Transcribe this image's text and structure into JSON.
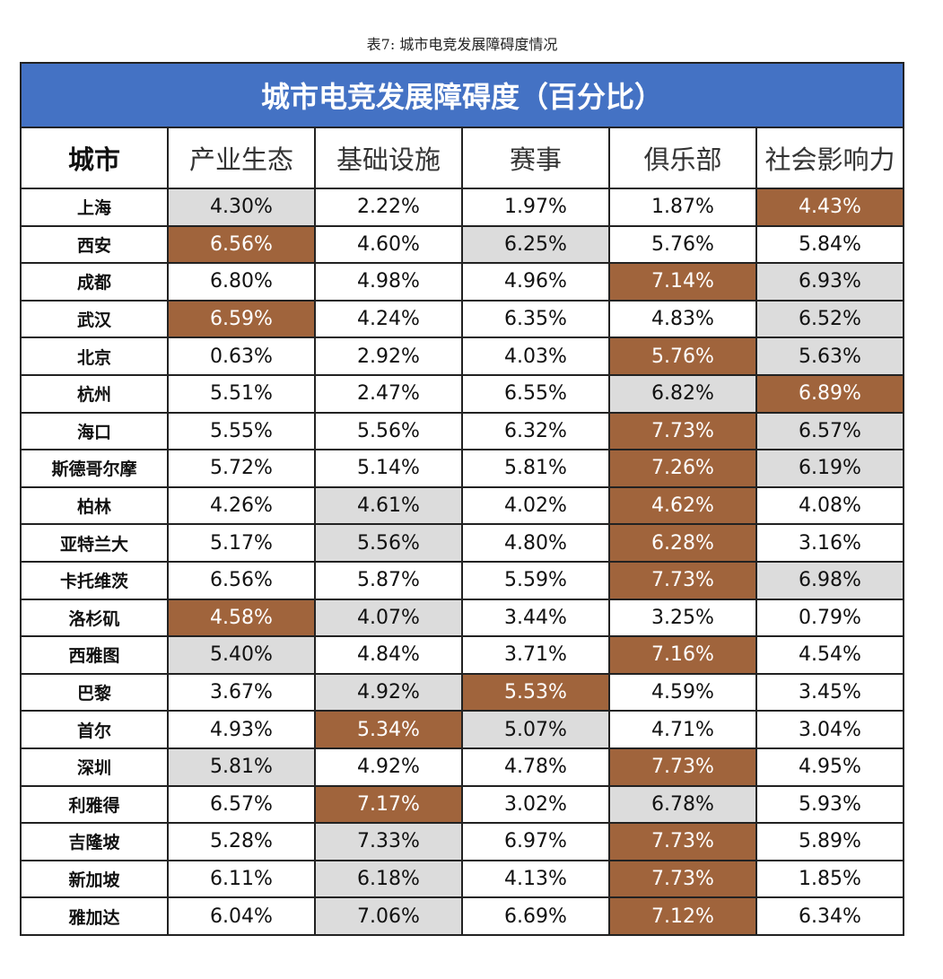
{
  "caption": "表7:  城市电竞发展障碍度情况",
  "table": {
    "title": "城市电竞发展障碍度（百分比）",
    "columns": [
      "城市",
      "产业生态",
      "基础设施",
      "赛事",
      "俱乐部",
      "社会影响力"
    ],
    "shade_colors": {
      "brown": "#a0643c",
      "gray": "#dcdcdc"
    },
    "rows": [
      [
        "上海",
        "4.30%",
        "2.22%",
        "1.97%",
        "1.87%",
        "4.43%"
      ],
      [
        "西安",
        "6.56%",
        "4.60%",
        "6.25%",
        "5.76%",
        "5.84%"
      ],
      [
        "成都",
        "6.80%",
        "4.98%",
        "4.96%",
        "7.14%",
        "6.93%"
      ],
      [
        "武汉",
        "6.59%",
        "4.24%",
        "6.35%",
        "4.83%",
        "6.52%"
      ],
      [
        "北京",
        "0.63%",
        "2.92%",
        "4.03%",
        "5.76%",
        "5.63%"
      ],
      [
        "杭州",
        "5.51%",
        "2.47%",
        "6.55%",
        "6.82%",
        "6.89%"
      ],
      [
        "海口",
        "5.55%",
        "5.56%",
        "6.32%",
        "7.73%",
        "6.57%"
      ],
      [
        "斯德哥尔摩",
        "5.72%",
        "5.14%",
        "5.81%",
        "7.26%",
        "6.19%"
      ],
      [
        "柏林",
        "4.26%",
        "4.61%",
        "4.02%",
        "4.62%",
        "4.08%"
      ],
      [
        "亚特兰大",
        "5.17%",
        "5.56%",
        "4.80%",
        "6.28%",
        "3.16%"
      ],
      [
        "卡托维茨",
        "6.56%",
        "5.87%",
        "5.59%",
        "7.73%",
        "6.98%"
      ],
      [
        "洛杉矶",
        "4.58%",
        "4.07%",
        "3.44%",
        "3.25%",
        "0.79%"
      ],
      [
        "西雅图",
        "5.40%",
        "4.84%",
        "3.71%",
        "7.16%",
        "4.54%"
      ],
      [
        "巴黎",
        "3.67%",
        "4.92%",
        "5.53%",
        "4.59%",
        "3.45%"
      ],
      [
        "首尔",
        "4.93%",
        "5.34%",
        "5.07%",
        "4.71%",
        "3.04%"
      ],
      [
        "深圳",
        "5.81%",
        "4.92%",
        "4.78%",
        "7.73%",
        "4.95%"
      ],
      [
        "利雅得",
        "6.57%",
        "7.17%",
        "3.02%",
        "6.78%",
        "5.93%"
      ],
      [
        "吉隆坡",
        "5.28%",
        "7.33%",
        "6.97%",
        "7.73%",
        "5.89%"
      ],
      [
        "新加坡",
        "6.11%",
        "6.18%",
        "4.13%",
        "7.73%",
        "1.85%"
      ],
      [
        "雅加达",
        "6.04%",
        "7.06%",
        "6.69%",
        "7.12%",
        "6.34%"
      ]
    ],
    "shading": [
      [
        null,
        "gray",
        null,
        null,
        null,
        "brown"
      ],
      [
        null,
        "brown",
        null,
        "gray",
        null,
        null
      ],
      [
        null,
        null,
        null,
        null,
        "brown",
        "gray"
      ],
      [
        null,
        "brown",
        null,
        null,
        null,
        "gray"
      ],
      [
        null,
        null,
        null,
        null,
        "brown",
        "gray"
      ],
      [
        null,
        null,
        null,
        null,
        "gray",
        "brown"
      ],
      [
        null,
        null,
        null,
        null,
        "brown",
        "gray"
      ],
      [
        null,
        null,
        null,
        null,
        "brown",
        "gray"
      ],
      [
        null,
        null,
        "gray",
        null,
        "brown",
        null
      ],
      [
        null,
        null,
        "gray",
        null,
        "brown",
        null
      ],
      [
        null,
        null,
        null,
        null,
        "brown",
        "gray"
      ],
      [
        null,
        "brown",
        "gray",
        null,
        null,
        null
      ],
      [
        null,
        "gray",
        null,
        null,
        "brown",
        null
      ],
      [
        null,
        null,
        "gray",
        "brown",
        null,
        null
      ],
      [
        null,
        null,
        "brown",
        "gray",
        null,
        null
      ],
      [
        null,
        "gray",
        null,
        null,
        "brown",
        null
      ],
      [
        null,
        null,
        "brown",
        null,
        "gray",
        null
      ],
      [
        null,
        null,
        "gray",
        null,
        "brown",
        null
      ],
      [
        null,
        null,
        "gray",
        null,
        "brown",
        null
      ],
      [
        null,
        null,
        "gray",
        null,
        "brown",
        null
      ]
    ]
  }
}
